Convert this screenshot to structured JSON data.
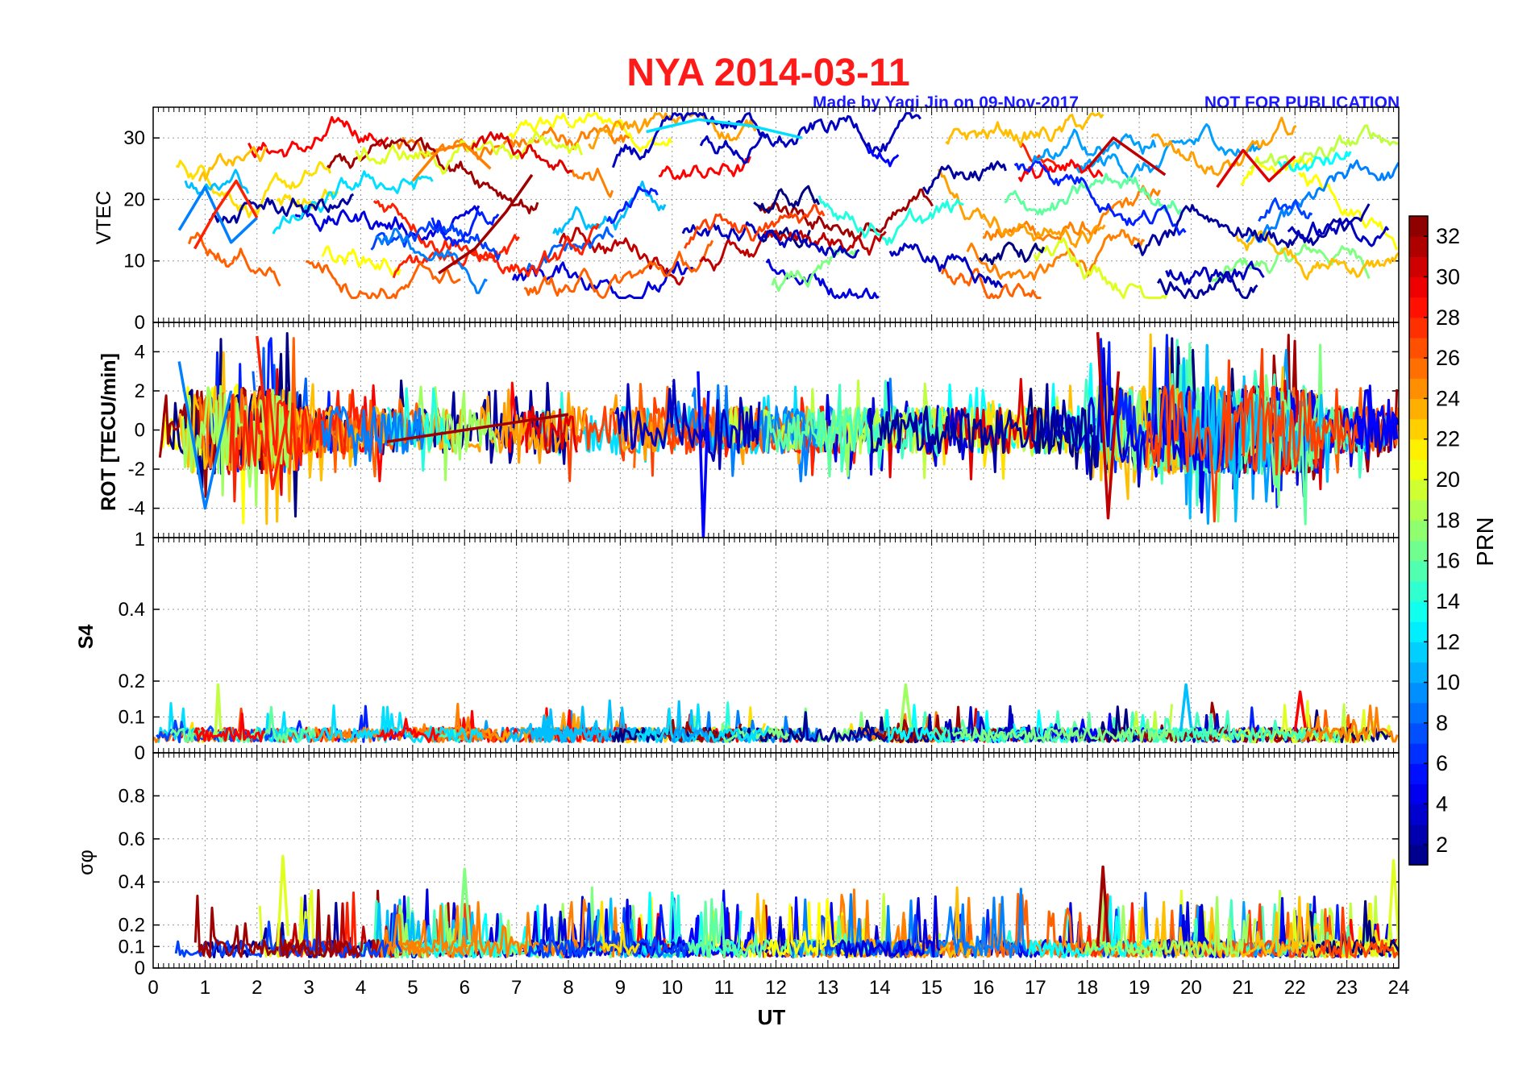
{
  "chart_data": [
    {
      "type": "line",
      "panel": "vtec",
      "title": "NYA   2014-03-11",
      "subtitle_left": "Made by Yaqi Jin on 09-Nov-2017",
      "subtitle_right": "NOT FOR PUBLICATION",
      "ylabel": "VTEC",
      "ylim": [
        0,
        35
      ],
      "yticks": [
        0,
        10,
        20,
        30
      ],
      "ytick_labels": [
        "0",
        "10",
        "20",
        "30"
      ],
      "trace_samples": [
        {
          "prn": 9,
          "x": [
            0.5,
            1.0,
            1.5,
            2.0
          ],
          "y": [
            15,
            22,
            13,
            17
          ]
        },
        {
          "prn": 28,
          "x": [
            0.8,
            1.2,
            1.6,
            2.0
          ],
          "y": [
            12,
            18,
            23,
            17
          ]
        },
        {
          "prn": 25,
          "x": [
            5.0,
            5.5,
            6.0,
            6.5
          ],
          "y": [
            23,
            28,
            29,
            25
          ]
        },
        {
          "prn": 32,
          "x": [
            5.5,
            6.2,
            6.8,
            7.3
          ],
          "y": [
            8,
            12,
            18,
            24
          ]
        },
        {
          "prn": 12,
          "x": [
            9.5,
            10.5,
            11.5,
            12.5
          ],
          "y": [
            31,
            33,
            32,
            30
          ]
        },
        {
          "prn": 31,
          "x": [
            18.0,
            18.5,
            19.0,
            19.5
          ],
          "y": [
            25,
            30,
            27,
            24
          ]
        },
        {
          "prn": 30,
          "x": [
            20.5,
            21.0,
            21.5,
            22.0
          ],
          "y": [
            22,
            28,
            23,
            27
          ]
        }
      ]
    },
    {
      "type": "line",
      "panel": "rot",
      "ylabel": "ROT [TECU/min]",
      "ylim": [
        -5.5,
        5.5
      ],
      "yticks": [
        -4,
        -2,
        0,
        2,
        4
      ],
      "ytick_labels": [
        "-4",
        "-2",
        "0",
        "2",
        "4"
      ],
      "trace_samples": [
        {
          "prn": 9,
          "x": [
            0.5,
            1.0,
            1.5
          ],
          "y": [
            3.5,
            -4,
            2
          ]
        },
        {
          "prn": 28,
          "x": [
            2.0,
            2.3,
            2.6
          ],
          "y": [
            4.8,
            -3,
            1
          ]
        },
        {
          "prn": 32,
          "x": [
            4.5,
            6.0,
            8.0
          ],
          "y": [
            -0.6,
            0,
            0.8
          ]
        },
        {
          "prn": 5,
          "x": [
            10.5,
            10.6,
            10.7
          ],
          "y": [
            3,
            -5.5,
            2
          ]
        },
        {
          "prn": 31,
          "x": [
            18.2,
            18.4,
            18.6
          ],
          "y": [
            5,
            -4.5,
            3
          ]
        }
      ]
    },
    {
      "type": "line",
      "panel": "s4",
      "ylabel": "S4",
      "ylim": [
        0,
        0.6
      ],
      "yticks": [
        0,
        0.1,
        0.2,
        0.4
      ],
      "ytick_labels": [
        "0",
        "0.1",
        "0.2",
        "0.4"
      ],
      "top_left_label": "1",
      "trace_samples": [
        {
          "prn": 19,
          "x": [
            1.2,
            1.25,
            1.3
          ],
          "y": [
            0.05,
            0.19,
            0.06
          ]
        },
        {
          "prn": 18,
          "x": [
            14.4,
            14.5,
            14.6
          ],
          "y": [
            0.06,
            0.19,
            0.07
          ]
        },
        {
          "prn": 11,
          "x": [
            19.8,
            19.9,
            20.0
          ],
          "y": [
            0.06,
            0.19,
            0.07
          ]
        },
        {
          "prn": 29,
          "x": [
            22.0,
            22.1,
            22.2
          ],
          "y": [
            0.06,
            0.17,
            0.07
          ]
        }
      ]
    },
    {
      "type": "line",
      "panel": "sigma_phi",
      "ylabel": "σφ",
      "xlabel": "UT",
      "xlim": [
        0,
        24
      ],
      "xticks": [
        "0",
        "1",
        "2",
        "3",
        "4",
        "5",
        "6",
        "7",
        "8",
        "9",
        "10",
        "11",
        "12",
        "13",
        "14",
        "15",
        "16",
        "17",
        "18",
        "19",
        "20",
        "21",
        "22",
        "23",
        "24"
      ],
      "ylim": [
        0,
        1.0
      ],
      "yticks": [
        0,
        0.1,
        0.2,
        0.4,
        0.6,
        0.8
      ],
      "ytick_labels": [
        "0",
        "0.1",
        "0.2",
        "0.4",
        "0.6",
        "0.8"
      ],
      "trace_samples": [
        {
          "prn": 20,
          "x": [
            2.4,
            2.5,
            2.6
          ],
          "y": [
            0.1,
            0.52,
            0.15
          ]
        },
        {
          "prn": 17,
          "x": [
            5.9,
            6.0,
            6.1
          ],
          "y": [
            0.1,
            0.46,
            0.12
          ]
        },
        {
          "prn": 32,
          "x": [
            18.2,
            18.3,
            18.4
          ],
          "y": [
            0.1,
            0.47,
            0.12
          ]
        },
        {
          "prn": 20,
          "x": [
            23.8,
            23.9,
            24.0
          ],
          "y": [
            0.1,
            0.5,
            0.12
          ]
        }
      ]
    }
  ],
  "colorbar": {
    "label": "PRN",
    "range": [
      1,
      33
    ],
    "tick_labels": [
      "2",
      "4",
      "6",
      "8",
      "10",
      "12",
      "14",
      "16",
      "18",
      "20",
      "22",
      "24",
      "26",
      "28",
      "30",
      "32"
    ],
    "colormap": "jet"
  },
  "colors": {
    "title": "#ff1a1a",
    "subtitle": "#1a1aff",
    "axis": "#000000",
    "grid": "#999999"
  }
}
